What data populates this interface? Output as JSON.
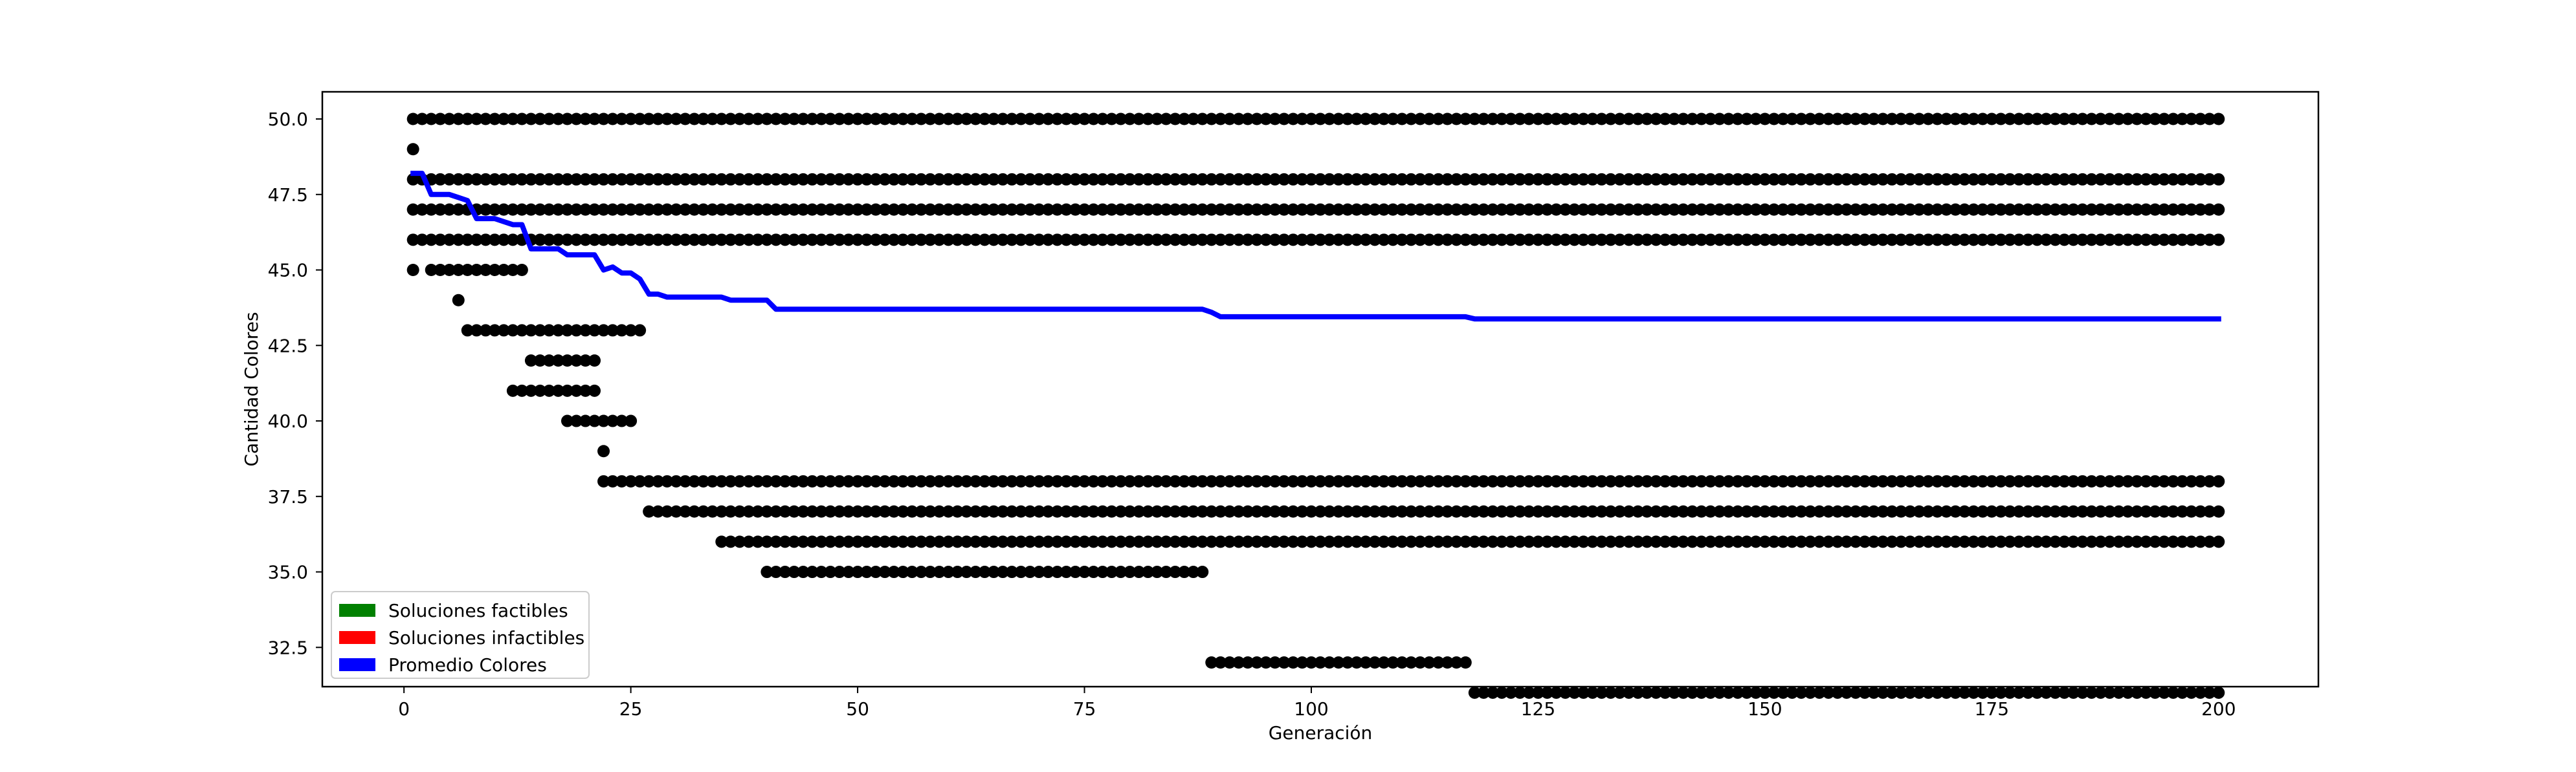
{
  "chart_data": {
    "type": "scatter",
    "title": "",
    "xlabel": "Generación",
    "ylabel": "Cantidad Colores",
    "xlim": [
      -9,
      211
    ],
    "ylim": [
      31.2,
      50.9
    ],
    "xticks": [
      "0",
      "25",
      "50",
      "75",
      "100",
      "125",
      "150",
      "175",
      "200"
    ],
    "xtick_values": [
      0,
      25,
      50,
      75,
      100,
      125,
      150,
      175,
      200
    ],
    "yticks": [
      "32.5",
      "35.0",
      "37.5",
      "40.0",
      "42.5",
      "45.0",
      "47.5",
      "50.0"
    ],
    "ytick_values": [
      32.5,
      35.0,
      37.5,
      40.0,
      42.5,
      45.0,
      47.5,
      50.0
    ],
    "grid": false,
    "legend_position": "lower left",
    "legend": [
      {
        "label": "Soluciones factibles",
        "color": "#008000"
      },
      {
        "label": "Soluciones infactibles",
        "color": "#ff0000"
      },
      {
        "label": "Promedio Colores",
        "color": "#0000ff"
      }
    ],
    "scatter_color": "#000000",
    "line_color": "#0000ff",
    "scatter_rows": [
      {
        "y": 50,
        "x_from": 1,
        "x_to": 200
      },
      {
        "y": 49,
        "x_from": 1,
        "x_to": 1
      },
      {
        "y": 48,
        "x_from": 1,
        "x_to": 200
      },
      {
        "y": 47,
        "x_from": 1,
        "x_to": 200
      },
      {
        "y": 46,
        "x_from": 1,
        "x_to": 200
      },
      {
        "y": 45,
        "x_from": 1,
        "x_to": 1
      },
      {
        "y": 45,
        "x_from": 3,
        "x_to": 13
      },
      {
        "y": 44,
        "x_from": 6,
        "x_to": 6
      },
      {
        "y": 43,
        "x_from": 7,
        "x_to": 26
      },
      {
        "y": 42,
        "x_from": 14,
        "x_to": 21
      },
      {
        "y": 41,
        "x_from": 12,
        "x_to": 21
      },
      {
        "y": 40,
        "x_from": 18,
        "x_to": 25
      },
      {
        "y": 39,
        "x_from": 22,
        "x_to": 22
      },
      {
        "y": 38,
        "x_from": 22,
        "x_to": 200
      },
      {
        "y": 37,
        "x_from": 27,
        "x_to": 200
      },
      {
        "y": 36,
        "x_from": 35,
        "x_to": 200
      },
      {
        "y": 35,
        "x_from": 40,
        "x_to": 88
      },
      {
        "y": 32,
        "x_from": 89,
        "x_to": 117
      },
      {
        "y": 31,
        "x_from": 118,
        "x_to": 200
      }
    ],
    "series": [
      {
        "name": "Promedio Colores",
        "x": [
          1,
          2,
          3,
          5,
          6,
          7,
          8,
          10,
          12,
          13,
          14,
          15,
          17,
          18,
          21,
          22,
          23,
          24,
          25,
          26,
          27,
          28,
          29,
          30,
          35,
          36,
          40,
          41,
          88,
          89,
          90,
          116,
          117,
          118,
          200
        ],
        "y": [
          48.2,
          48.2,
          47.5,
          47.5,
          47.4,
          47.3,
          46.7,
          46.7,
          46.5,
          46.5,
          45.7,
          45.7,
          45.7,
          45.5,
          45.5,
          45.0,
          45.1,
          44.9,
          44.9,
          44.7,
          44.2,
          44.2,
          44.1,
          44.1,
          44.1,
          44.0,
          44.0,
          43.7,
          43.7,
          43.6,
          43.45,
          43.45,
          43.45,
          43.38,
          43.38
        ]
      }
    ]
  }
}
